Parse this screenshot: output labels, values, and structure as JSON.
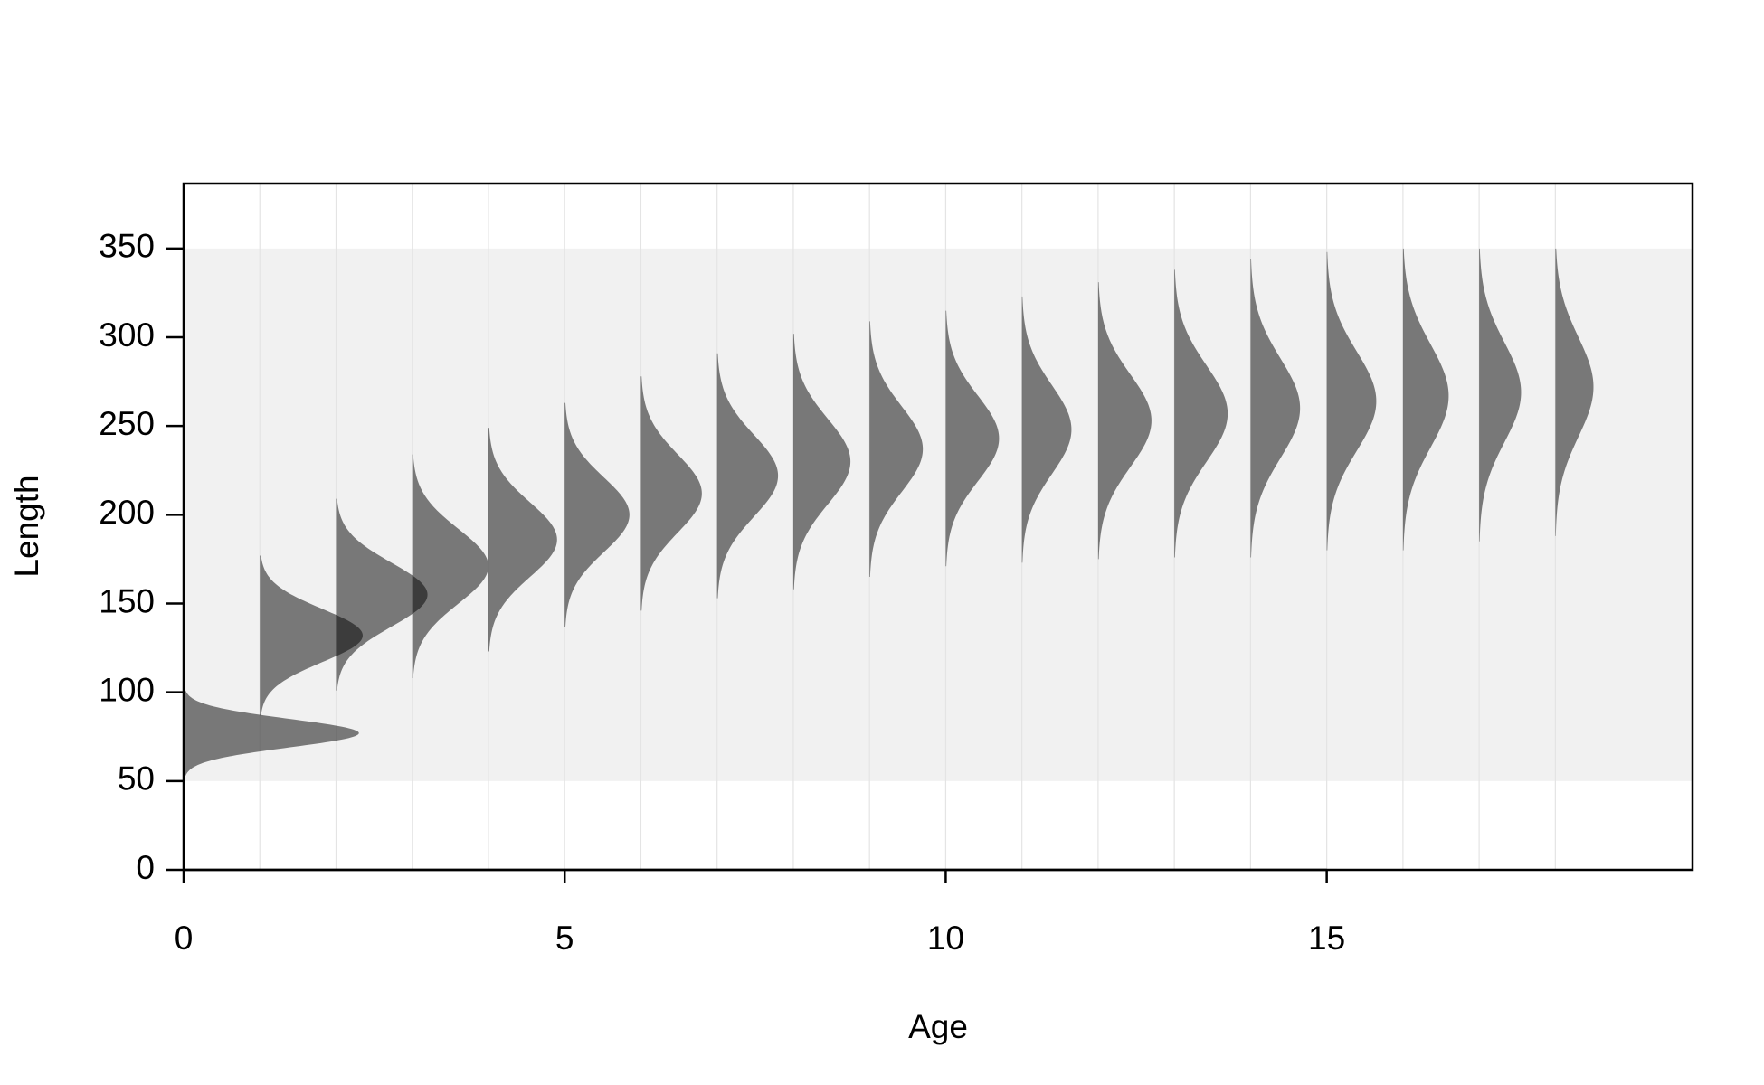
{
  "chart_data": {
    "type": "density-ridge",
    "x_label": "Age",
    "y_label": "Length",
    "x": [
      0,
      1,
      2,
      3,
      4,
      5,
      6,
      7,
      8,
      9,
      10,
      11,
      12,
      13,
      14,
      15,
      16,
      17,
      18
    ],
    "mean": [
      77,
      132,
      155,
      171,
      186,
      200,
      212,
      222,
      230,
      237,
      243,
      248,
      253,
      257,
      260,
      264,
      267,
      269,
      272
    ],
    "sd": [
      8,
      15,
      18,
      21,
      21,
      21,
      22,
      23,
      24,
      24,
      24,
      25,
      26,
      27,
      28,
      28,
      29,
      28,
      28
    ],
    "peak": [
      2.3,
      1.35,
      1.2,
      1.0,
      0.9,
      0.85,
      0.8,
      0.8,
      0.75,
      0.7,
      0.7,
      0.65,
      0.7,
      0.7,
      0.65,
      0.65,
      0.6,
      0.55,
      0.5
    ],
    "color": "#000000",
    "opacity": 0.5,
    "length_range": [
      50,
      350
    ],
    "xlim": [
      0,
      19.8
    ],
    "ylim": [
      0,
      386.6
    ],
    "xticks": [
      0,
      5,
      10,
      15
    ],
    "yticks": [
      0,
      50,
      100,
      150,
      200,
      250,
      300,
      350
    ],
    "grid": true
  }
}
